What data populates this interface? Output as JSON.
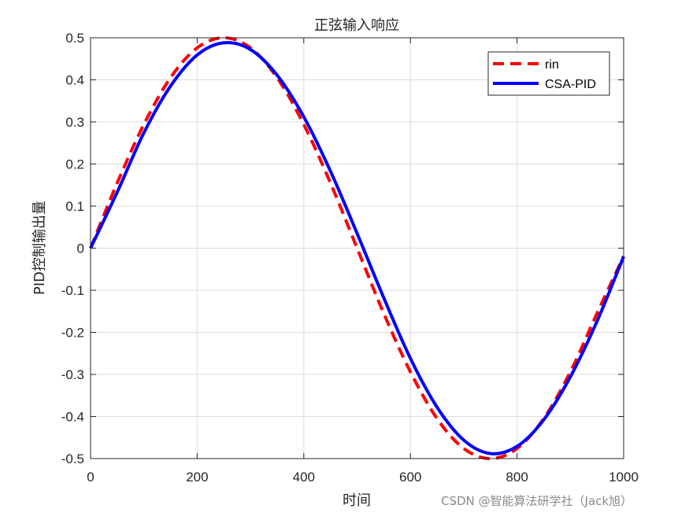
{
  "chart_data": {
    "type": "line",
    "title": "正弦输入响应",
    "xlabel": "时间",
    "ylabel": "PID控制输出量",
    "xlim": [
      0,
      1000
    ],
    "ylim": [
      -0.5,
      0.5
    ],
    "xticks": [
      0,
      200,
      400,
      600,
      800,
      1000
    ],
    "yticks": [
      -0.5,
      -0.4,
      -0.3,
      -0.2,
      -0.1,
      0,
      0.1,
      0.2,
      0.3,
      0.4,
      0.5
    ],
    "xtick_labels": [
      "0",
      "200",
      "400",
      "600",
      "800",
      "1000"
    ],
    "ytick_labels": [
      "-0.5",
      "-0.4",
      "-0.3",
      "-0.2",
      "-0.1",
      "0",
      "0.1",
      "0.2",
      "0.3",
      "0.4",
      "0.5"
    ],
    "grid": true,
    "legend_position": "top-right",
    "series": [
      {
        "name": "rin",
        "color": "#ff0000",
        "style": "dashed",
        "x": [
          0,
          50,
          100,
          150,
          200,
          250,
          300,
          350,
          400,
          450,
          500,
          550,
          600,
          650,
          700,
          750,
          800,
          850,
          900,
          950,
          1000
        ],
        "y": [
          0,
          0.155,
          0.294,
          0.405,
          0.476,
          0.5,
          0.476,
          0.405,
          0.294,
          0.155,
          0,
          -0.155,
          -0.294,
          -0.405,
          -0.476,
          -0.5,
          -0.476,
          -0.405,
          -0.294,
          -0.155,
          -0.019
        ]
      },
      {
        "name": "CSA-PID",
        "color": "#0000ff",
        "style": "solid",
        "x": [
          0,
          50,
          100,
          150,
          200,
          250,
          300,
          350,
          400,
          450,
          500,
          550,
          600,
          650,
          700,
          750,
          800,
          850,
          900,
          950,
          1000
        ],
        "y": [
          0,
          0.133,
          0.274,
          0.385,
          0.459,
          0.488,
          0.472,
          0.411,
          0.312,
          0.183,
          0.035,
          -0.118,
          -0.262,
          -0.378,
          -0.456,
          -0.488,
          -0.471,
          -0.408,
          -0.306,
          -0.174,
          -0.02
        ]
      }
    ]
  },
  "watermark": "CSDN @智能算法研学社（Jack旭）"
}
